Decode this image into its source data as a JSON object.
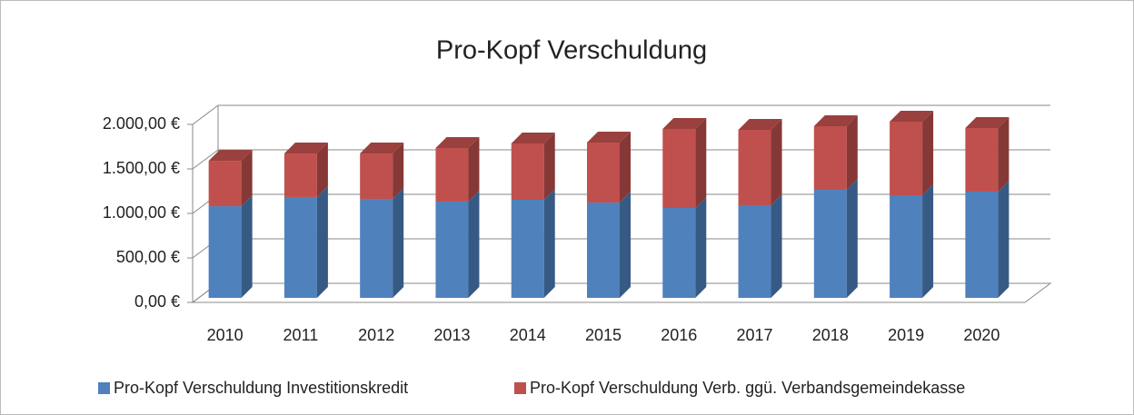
{
  "chart_data": {
    "type": "bar3d_stacked",
    "title": "Pro-Kopf Verschuldung",
    "categories": [
      "2010",
      "2011",
      "2012",
      "2013",
      "2014",
      "2015",
      "2016",
      "2017",
      "2018",
      "2019",
      "2020"
    ],
    "series": [
      {
        "name": "Pro-Kopf Verschuldung Investitionskredit",
        "color": "#4f81bd",
        "values": [
          1030,
          1133,
          1112,
          1082,
          1102,
          1071,
          1010,
          1041,
          1214,
          1153,
          1194
        ]
      },
      {
        "name": "Pro-Kopf Verschuldung Verb. ggü. Verbandsgemeindekasse",
        "color": "#c0504d",
        "values": [
          510,
          489,
          510,
          602,
          633,
          674,
          888,
          847,
          715,
          827,
          714
        ]
      }
    ],
    "ylim": [
      0,
      2000
    ],
    "yticks": [
      {
        "value": 0,
        "label": "0,00 €"
      },
      {
        "value": 500,
        "label": "500,00 €"
      },
      {
        "value": 1000,
        "label": "1.000,00 €"
      },
      {
        "value": 1500,
        "label": "1.500,00 €"
      },
      {
        "value": 2000,
        "label": "2.000,00 €"
      }
    ],
    "grid": true,
    "legend": "bottom"
  }
}
